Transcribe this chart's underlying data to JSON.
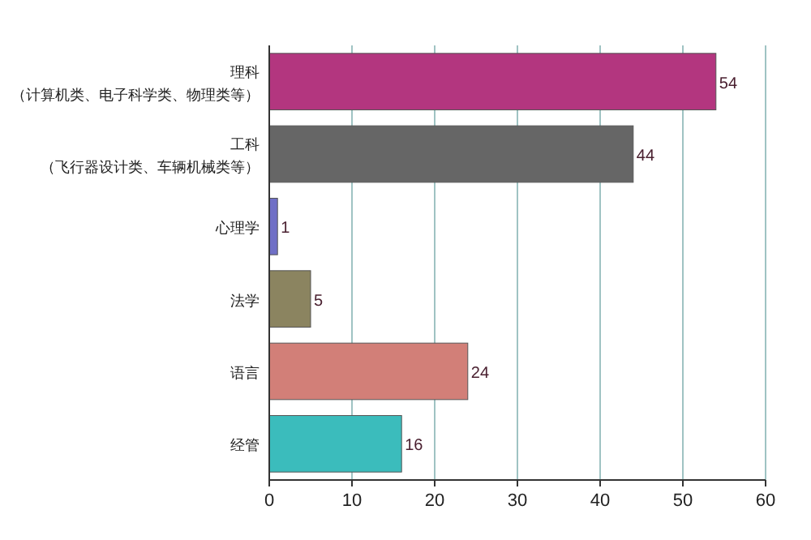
{
  "chart_data": {
    "type": "bar",
    "orientation": "horizontal",
    "categories": [
      "理科（计算机类、电子科学类、物理类等）",
      "工科（飞行器设计类、车辆机械类等）",
      "心理学",
      "法学",
      "语言",
      "经管"
    ],
    "values": [
      54,
      44,
      1,
      5,
      24,
      16
    ],
    "colors": [
      "#b3367f",
      "#666666",
      "#6f6fc6",
      "#8b8460",
      "#d27f78",
      "#3bbcbc"
    ],
    "xlim": [
      0,
      60
    ],
    "xticks": [
      0,
      10,
      20,
      30,
      40,
      50,
      60
    ],
    "grid": "x",
    "data_labels": true
  }
}
